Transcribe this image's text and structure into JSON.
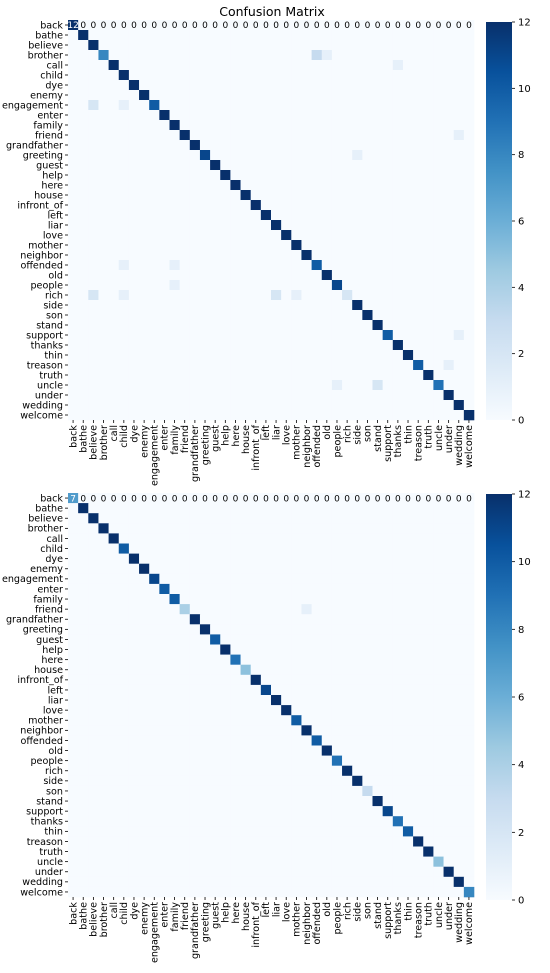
{
  "colors": {
    "low": "#f7fbff",
    "c2": "#deebf7",
    "c4": "#c6dbef",
    "c6": "#9ecae1",
    "c8": "#6baed6",
    "c9": "#4292c6",
    "c10": "#2171b5",
    "c11": "#08519c",
    "high": "#08306b"
  },
  "chart_data": [
    {
      "type": "heatmap",
      "title": "Confusion Matrix",
      "labels": [
        "back",
        "bathe",
        "believe",
        "brother",
        "call",
        "child",
        "dye",
        "enemy",
        "engagement",
        "enter",
        "family",
        "friend",
        "grandfather",
        "greeting",
        "guest",
        "help",
        "here",
        "house",
        "infront_of",
        "left",
        "liar",
        "love",
        "mother",
        "neighbor",
        "offended",
        "old",
        "people",
        "rich",
        "side",
        "son",
        "stand",
        "support",
        "thanks",
        "thin",
        "treason",
        "truth",
        "uncle",
        "under",
        "wedding",
        "welcome"
      ],
      "diagonal": [
        12,
        12,
        12,
        8,
        12,
        12,
        12,
        12,
        10,
        12,
        12,
        12,
        12,
        11,
        12,
        12,
        12,
        12,
        12,
        12,
        12,
        12,
        12,
        12,
        10,
        12,
        11,
        2,
        12,
        12,
        12,
        10,
        12,
        12,
        10,
        12,
        9,
        12,
        12,
        12
      ],
      "off_diagonal": [
        [
          3,
          24,
          3
        ],
        [
          3,
          25,
          1
        ],
        [
          4,
          32,
          1
        ],
        [
          8,
          2,
          2
        ],
        [
          8,
          5,
          1
        ],
        [
          11,
          38,
          1
        ],
        [
          13,
          28,
          1
        ],
        [
          24,
          5,
          1
        ],
        [
          24,
          10,
          1
        ],
        [
          26,
          10,
          1
        ],
        [
          27,
          2,
          2
        ],
        [
          27,
          5,
          1
        ],
        [
          27,
          20,
          2
        ],
        [
          27,
          22,
          1
        ],
        [
          31,
          38,
          1
        ],
        [
          34,
          37,
          1
        ],
        [
          36,
          26,
          1
        ],
        [
          36,
          30,
          2
        ]
      ],
      "annotation": {
        "row": 0,
        "col": 0,
        "text": "12"
      },
      "first_row_zero_label": "0",
      "colorbar": {
        "min": 0,
        "max": 12,
        "ticks": [
          0,
          2,
          4,
          6,
          8,
          10,
          12
        ]
      }
    },
    {
      "type": "heatmap",
      "title": "",
      "labels": [
        "back",
        "bathe",
        "believe",
        "brother",
        "call",
        "child",
        "dye",
        "enemy",
        "engagement",
        "enter",
        "family",
        "friend",
        "grandfather",
        "greeting",
        "guest",
        "help",
        "here",
        "house",
        "infront_of",
        "left",
        "liar",
        "love",
        "mother",
        "neighbor",
        "offended",
        "old",
        "people",
        "rich",
        "side",
        "son",
        "stand",
        "support",
        "thanks",
        "thin",
        "treason",
        "truth",
        "uncle",
        "under",
        "wedding",
        "welcome"
      ],
      "diagonal": [
        7,
        12,
        12,
        12,
        12,
        10,
        12,
        12,
        11,
        10,
        10,
        4,
        12,
        12,
        10,
        12,
        9,
        5,
        12,
        11,
        12,
        12,
        10,
        12,
        10,
        12,
        9,
        12,
        12,
        3,
        12,
        11,
        9,
        10,
        12,
        12,
        5,
        12,
        12,
        8
      ],
      "off_diagonal": [
        [
          11,
          23,
          1
        ]
      ],
      "annotation": {
        "row": 0,
        "col": 0,
        "text": "7"
      },
      "first_row_zero_label": "0",
      "colorbar": {
        "min": 0,
        "max": 12,
        "ticks": [
          0,
          2,
          4,
          6,
          8,
          10,
          12
        ]
      }
    }
  ]
}
